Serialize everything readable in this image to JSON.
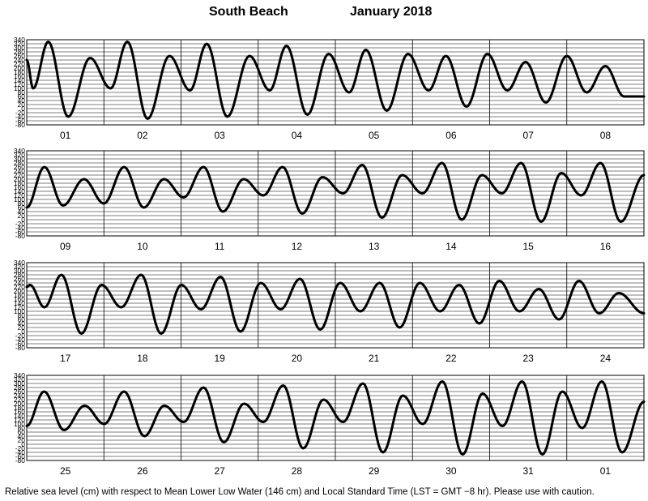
{
  "title": {
    "location": "South Beach",
    "period": "January   2018"
  },
  "footnote": "Relative sea level (cm) with respect to Mean Lower Low Water (146 cm) and Local Standard Time (LST = GMT −8 hr). Please use with caution.",
  "chart_data": [
    {
      "type": "line",
      "ylim": [
        -80,
        340
      ],
      "yticks": [
        -80,
        -60,
        -40,
        -20,
        0,
        20,
        40,
        60,
        80,
        100,
        120,
        140,
        160,
        180,
        200,
        220,
        240,
        260,
        280,
        300,
        320,
        340
      ],
      "day_labels": [
        "01",
        "02",
        "03",
        "04",
        "05",
        "06",
        "07",
        "08"
      ],
      "extremes": [
        [
          0,
          240
        ],
        [
          2.0,
          100
        ],
        [
          6.7,
          330
        ],
        [
          12.9,
          -40
        ],
        [
          19.7,
          250
        ],
        [
          26.1,
          100
        ],
        [
          31.3,
          330
        ],
        [
          37.6,
          -50
        ],
        [
          44.4,
          260
        ],
        [
          50.8,
          90
        ],
        [
          56.0,
          320
        ],
        [
          62.4,
          -40
        ],
        [
          69.3,
          260
        ],
        [
          75.6,
          90
        ],
        [
          80.8,
          310
        ],
        [
          87.3,
          -30
        ],
        [
          93.9,
          270
        ],
        [
          100.3,
          80
        ],
        [
          105.5,
          290
        ],
        [
          112.0,
          -10
        ],
        [
          118.6,
          270
        ],
        [
          125.0,
          90
        ],
        [
          130.4,
          260
        ],
        [
          136.8,
          10
        ],
        [
          143.3,
          270
        ],
        [
          149.5,
          90
        ],
        [
          155.2,
          230
        ],
        [
          161.5,
          30
        ],
        [
          168.0,
          260
        ],
        [
          174.2,
          80
        ],
        [
          180.0,
          210
        ],
        [
          185.8,
          60
        ],
        [
          192,
          60
        ]
      ]
    },
    {
      "type": "line",
      "ylim": [
        -80,
        340
      ],
      "yticks": [
        -80,
        -60,
        -40,
        -20,
        0,
        20,
        40,
        60,
        80,
        100,
        120,
        140,
        160,
        180,
        200,
        220,
        240,
        260,
        280,
        300,
        320,
        340
      ],
      "day_labels": [
        "09",
        "10",
        "11",
        "12",
        "13",
        "14",
        "15",
        "16"
      ],
      "extremes": [
        [
          0,
          60
        ],
        [
          5.5,
          260
        ],
        [
          11.3,
          70
        ],
        [
          17.8,
          200
        ],
        [
          24.0,
          80
        ],
        [
          30.3,
          260
        ],
        [
          36.4,
          60
        ],
        [
          42.7,
          200
        ],
        [
          48.8,
          110
        ],
        [
          55.0,
          260
        ],
        [
          61.0,
          40
        ],
        [
          67.5,
          200
        ],
        [
          73.6,
          120
        ],
        [
          79.6,
          260
        ],
        [
          85.7,
          30
        ],
        [
          92.0,
          210
        ],
        [
          98.4,
          130
        ],
        [
          104.4,
          270
        ],
        [
          110.5,
          10
        ],
        [
          116.8,
          220
        ],
        [
          123.1,
          130
        ],
        [
          129.2,
          280
        ],
        [
          135.3,
          0
        ],
        [
          141.6,
          220
        ],
        [
          147.8,
          130
        ],
        [
          153.8,
          280
        ],
        [
          160.0,
          -10
        ],
        [
          166.3,
          230
        ],
        [
          172.5,
          120
        ],
        [
          178.5,
          280
        ],
        [
          184.8,
          -10
        ],
        [
          192,
          220
        ]
      ]
    },
    {
      "type": "line",
      "ylim": [
        -80,
        340
      ],
      "yticks": [
        -80,
        -60,
        -40,
        -20,
        0,
        20,
        40,
        60,
        80,
        100,
        120,
        140,
        160,
        180,
        200,
        220,
        240,
        260,
        280,
        300,
        320,
        340
      ],
      "day_labels": [
        "17",
        "18",
        "19",
        "20",
        "21",
        "22",
        "23",
        "24"
      ],
      "extremes": [
        [
          0,
          220
        ],
        [
          1.0,
          230
        ],
        [
          5.5,
          120
        ],
        [
          10.8,
          280
        ],
        [
          17.0,
          -10
        ],
        [
          23.3,
          230
        ],
        [
          29.4,
          120
        ],
        [
          35.6,
          280
        ],
        [
          41.8,
          -10
        ],
        [
          48.1,
          230
        ],
        [
          54.2,
          110
        ],
        [
          60.3,
          270
        ],
        [
          66.5,
          0
        ],
        [
          72.8,
          240
        ],
        [
          79.0,
          110
        ],
        [
          85.0,
          260
        ],
        [
          91.3,
          10
        ],
        [
          97.5,
          240
        ],
        [
          103.8,
          100
        ],
        [
          109.8,
          240
        ],
        [
          116.0,
          20
        ],
        [
          122.3,
          240
        ],
        [
          128.6,
          100
        ],
        [
          134.5,
          230
        ],
        [
          140.8,
          40
        ],
        [
          147.0,
          250
        ],
        [
          153.3,
          100
        ],
        [
          159.3,
          210
        ],
        [
          165.6,
          60
        ],
        [
          171.8,
          250
        ],
        [
          178.1,
          90
        ],
        [
          184.2,
          190
        ],
        [
          192,
          90
        ]
      ]
    },
    {
      "type": "line",
      "ylim": [
        -80,
        340
      ],
      "yticks": [
        -80,
        -60,
        -40,
        -20,
        0,
        20,
        40,
        60,
        80,
        100,
        120,
        140,
        160,
        180,
        200,
        220,
        240,
        260,
        280,
        300,
        320,
        340
      ],
      "day_labels": [
        "25",
        "26",
        "27",
        "28",
        "29",
        "30",
        "31",
        "01"
      ],
      "extremes": [
        [
          0,
          90
        ],
        [
          5.4,
          260
        ],
        [
          11.6,
          70
        ],
        [
          18.0,
          190
        ],
        [
          24.1,
          100
        ],
        [
          30.3,
          260
        ],
        [
          36.6,
          40
        ],
        [
          42.8,
          190
        ],
        [
          48.8,
          110
        ],
        [
          55.0,
          280
        ],
        [
          61.3,
          10
        ],
        [
          67.6,
          200
        ],
        [
          73.6,
          110
        ],
        [
          79.8,
          290
        ],
        [
          86.0,
          -20
        ],
        [
          92.3,
          220
        ],
        [
          98.4,
          110
        ],
        [
          104.6,
          300
        ],
        [
          110.8,
          -40
        ],
        [
          117.0,
          240
        ],
        [
          123.2,
          100
        ],
        [
          129.3,
          310
        ],
        [
          135.6,
          -50
        ],
        [
          141.8,
          250
        ],
        [
          148.0,
          90
        ],
        [
          154.1,
          310
        ],
        [
          160.4,
          -50
        ],
        [
          166.6,
          260
        ],
        [
          172.8,
          80
        ],
        [
          178.9,
          310
        ],
        [
          185.2,
          -40
        ],
        [
          192,
          210
        ]
      ]
    }
  ]
}
